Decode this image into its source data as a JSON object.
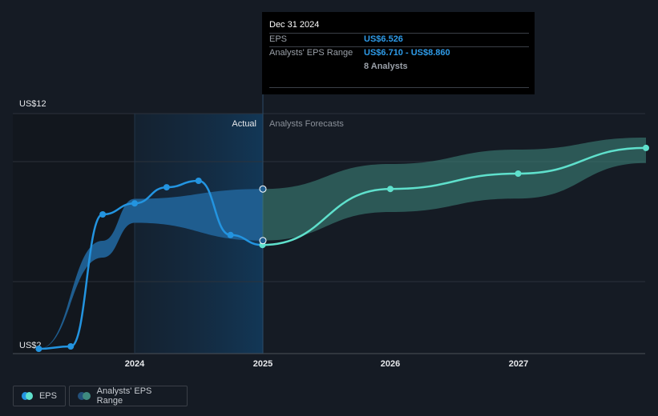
{
  "chart_data": {
    "type": "line",
    "y_tick_labels": [
      "US$12",
      "US$2"
    ],
    "x_tick_labels": [
      "2024",
      "2025",
      "2026",
      "2027"
    ],
    "ylim": [
      2,
      12
    ],
    "region_labels": {
      "actual": "Actual",
      "forecast": "Analysts Forecasts"
    },
    "series": [
      {
        "name": "EPS",
        "color": "#2394e0",
        "points": [
          [
            "2023-03",
            2.2
          ],
          [
            "2023-06",
            2.3
          ],
          [
            "2023-09",
            7.8
          ],
          [
            "2023-12",
            8.26
          ],
          [
            "2024-03",
            8.93
          ],
          [
            "2024-06",
            9.2
          ],
          [
            "2024-09",
            6.94
          ],
          [
            "2024-12",
            6.526
          ]
        ]
      },
      {
        "name": "EPS forecast",
        "color": "#5fe0cc",
        "points": [
          [
            "2024-12",
            6.526
          ],
          [
            "2025-12",
            8.86
          ],
          [
            "2026-12",
            9.5
          ],
          [
            "2027-12",
            10.57
          ]
        ]
      }
    ],
    "range": {
      "name": "Analysts' EPS Range",
      "color": "#2f6b66",
      "upper": [
        [
          "2023-03",
          2.2
        ],
        [
          "2023-09",
          6.7
        ],
        [
          "2023-12",
          8.45
        ],
        [
          "2024-12",
          8.86
        ],
        [
          "2025-12",
          9.9
        ],
        [
          "2026-12",
          10.5
        ],
        [
          "2027-12",
          11.0
        ]
      ],
      "lower": [
        [
          "2023-03",
          2.2
        ],
        [
          "2023-09",
          6.0
        ],
        [
          "2023-12",
          7.45
        ],
        [
          "2024-12",
          6.71
        ],
        [
          "2025-12",
          7.9
        ],
        [
          "2026-12",
          8.46
        ],
        [
          "2027-12",
          9.94
        ]
      ]
    }
  },
  "tooltip": {
    "date": "Dec 31 2024",
    "eps_label": "EPS",
    "eps_value": "US$6.526",
    "range_label": "Analysts' EPS Range",
    "range_value": "US$6.710 - US$8.860",
    "analysts": "8 Analysts"
  },
  "legend": {
    "eps": "EPS",
    "range": "Analysts' EPS Range"
  },
  "colors": {
    "eps": "#2394e0",
    "forecast": "#5fe0cc",
    "range": "#2f6b66"
  }
}
